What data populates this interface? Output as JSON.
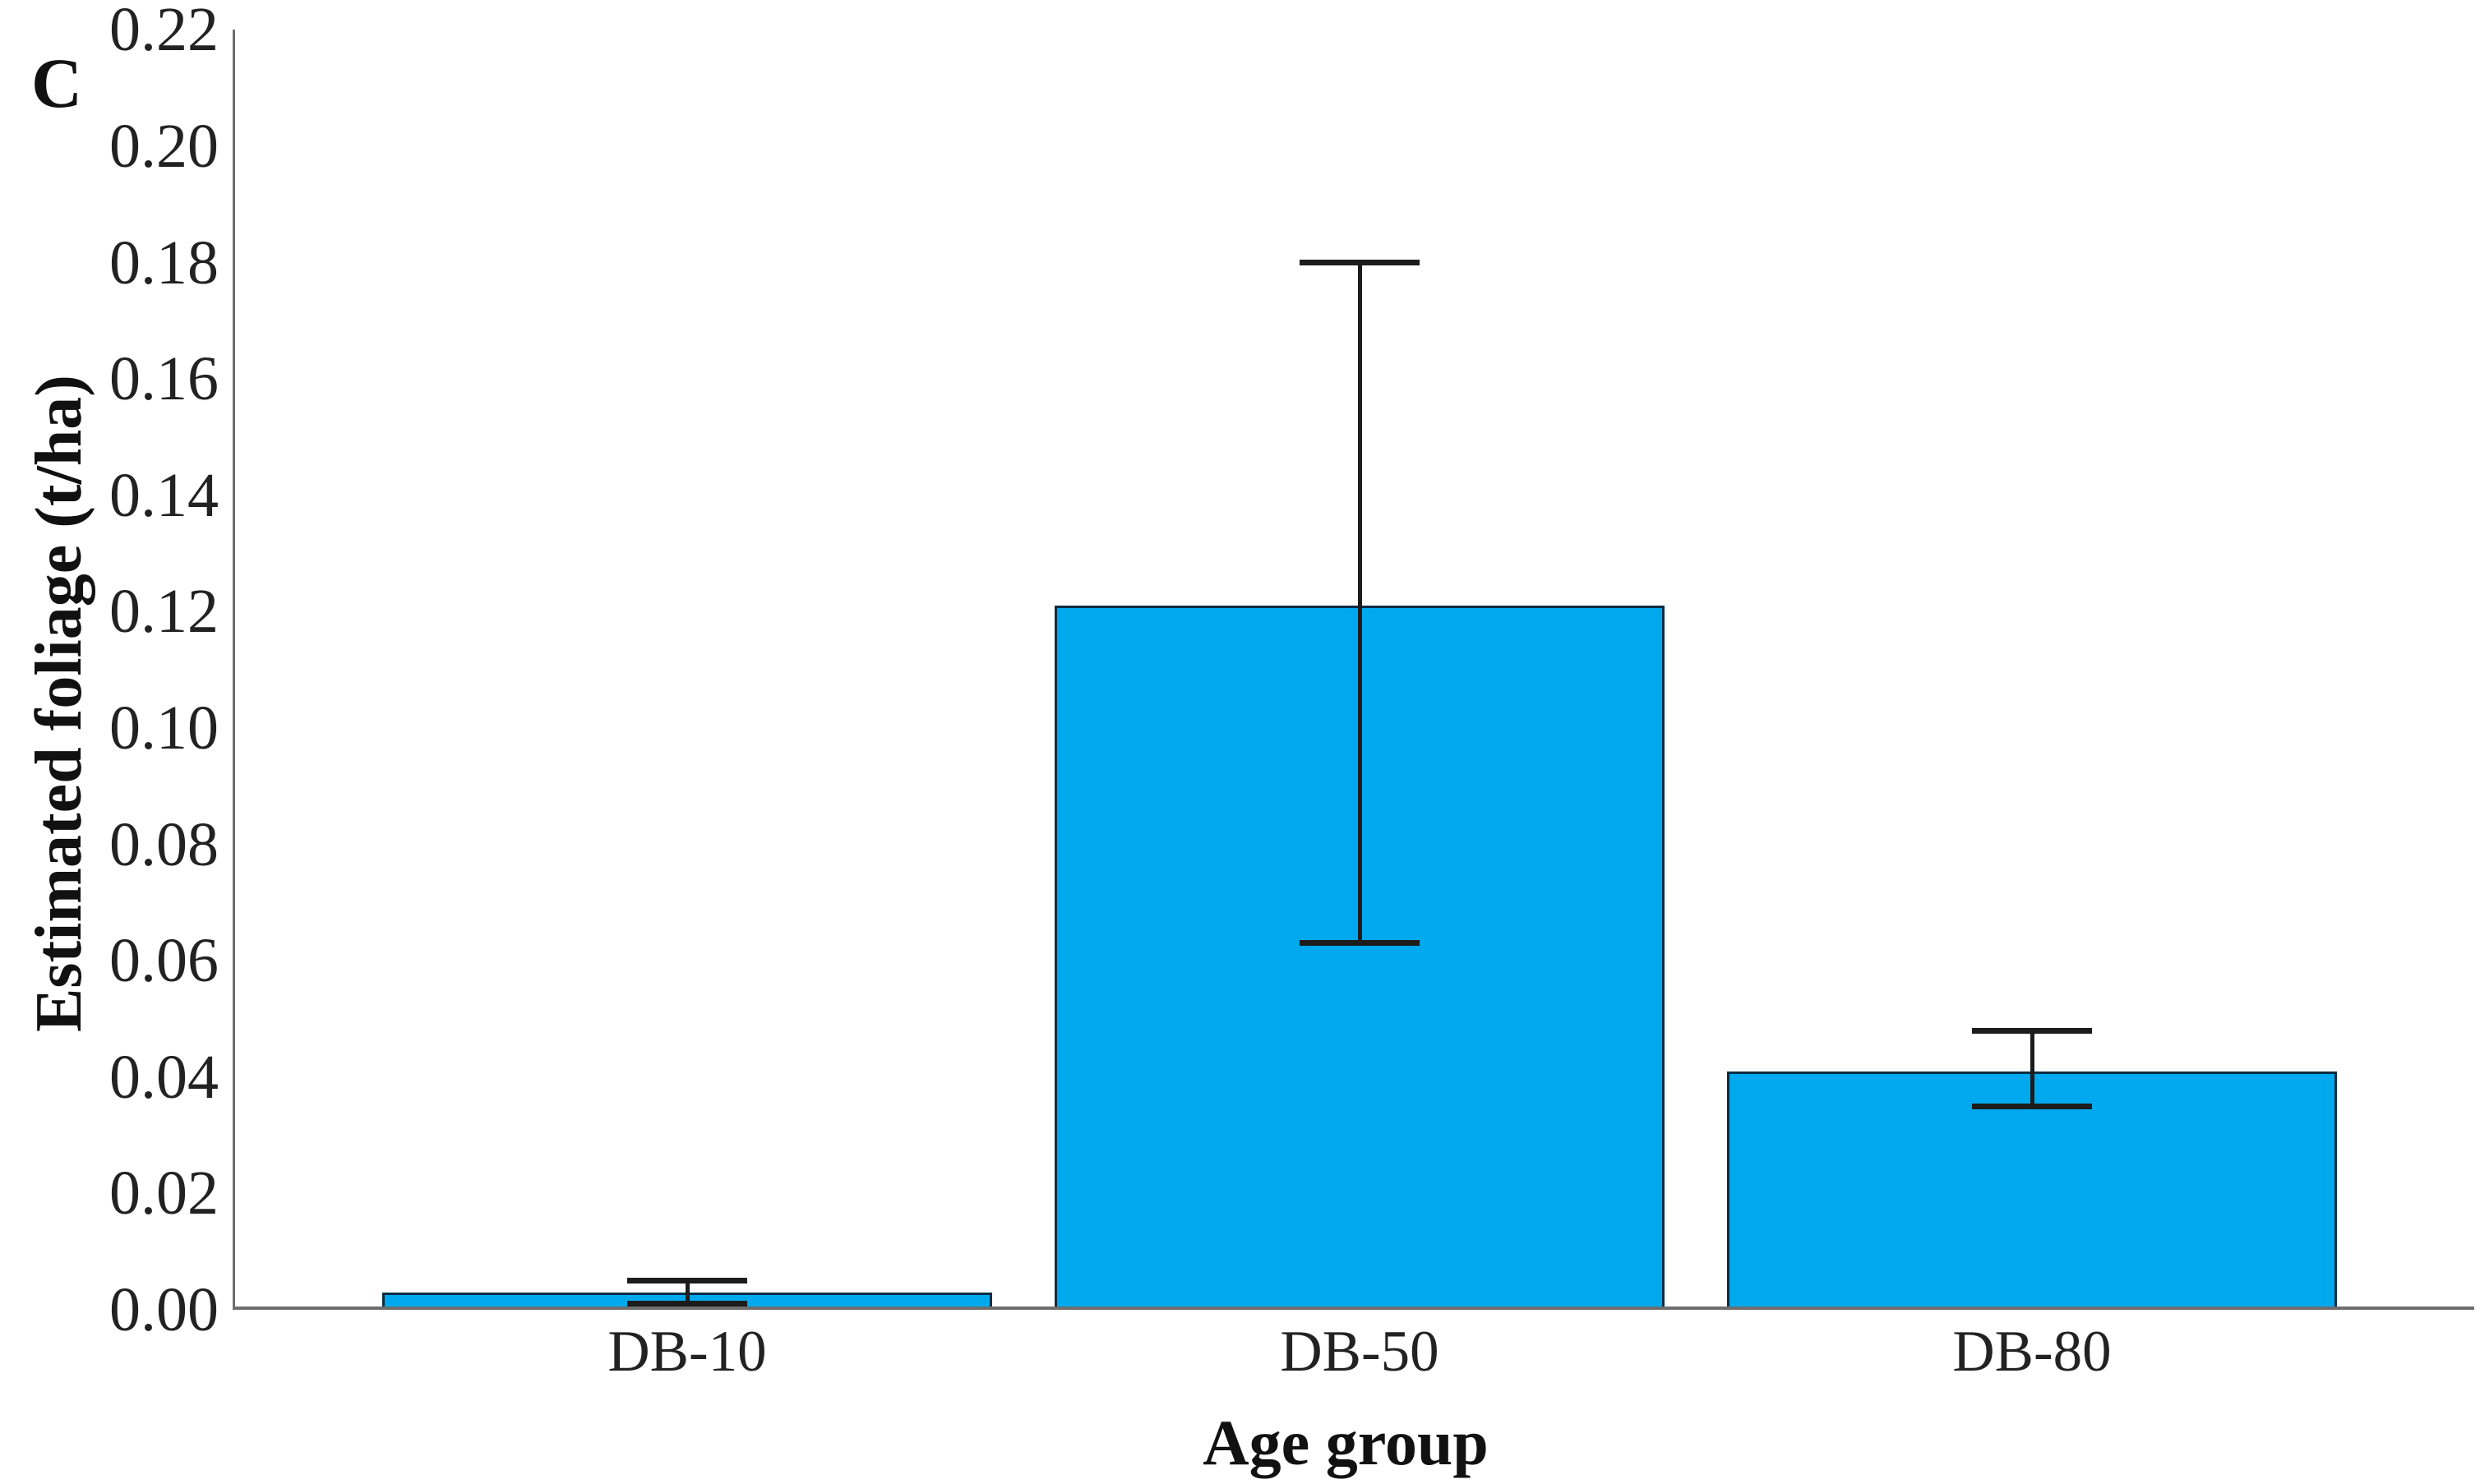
{
  "chart_data": {
    "type": "bar",
    "panel_label": "C",
    "title": "",
    "xlabel": "Age group",
    "ylabel": "Estimated foliage (t/ha)",
    "categories": [
      "DB-10",
      "DB-50",
      "DB-80"
    ],
    "values": [
      0.003,
      0.121,
      0.041
    ],
    "error_bars": [
      {
        "low": 0.001,
        "high": 0.005
      },
      {
        "low": 0.063,
        "high": 0.18
      },
      {
        "low": 0.035,
        "high": 0.048
      }
    ],
    "ylim": [
      0.0,
      0.22
    ],
    "ytick_step": 0.02,
    "ytick_labels": [
      "0.00",
      "0.02",
      "0.04",
      "0.06",
      "0.08",
      "0.10",
      "0.12",
      "0.14",
      "0.16",
      "0.18",
      "0.20",
      "0.22"
    ],
    "grid": "off",
    "legend": "none",
    "colors": {
      "bar_fill": "#00A9EE",
      "bar_border": "#0B2D44",
      "error_bar": "#1C1C1C",
      "axis_line": "#6E6E6E",
      "text": "#1A1A1A"
    }
  }
}
